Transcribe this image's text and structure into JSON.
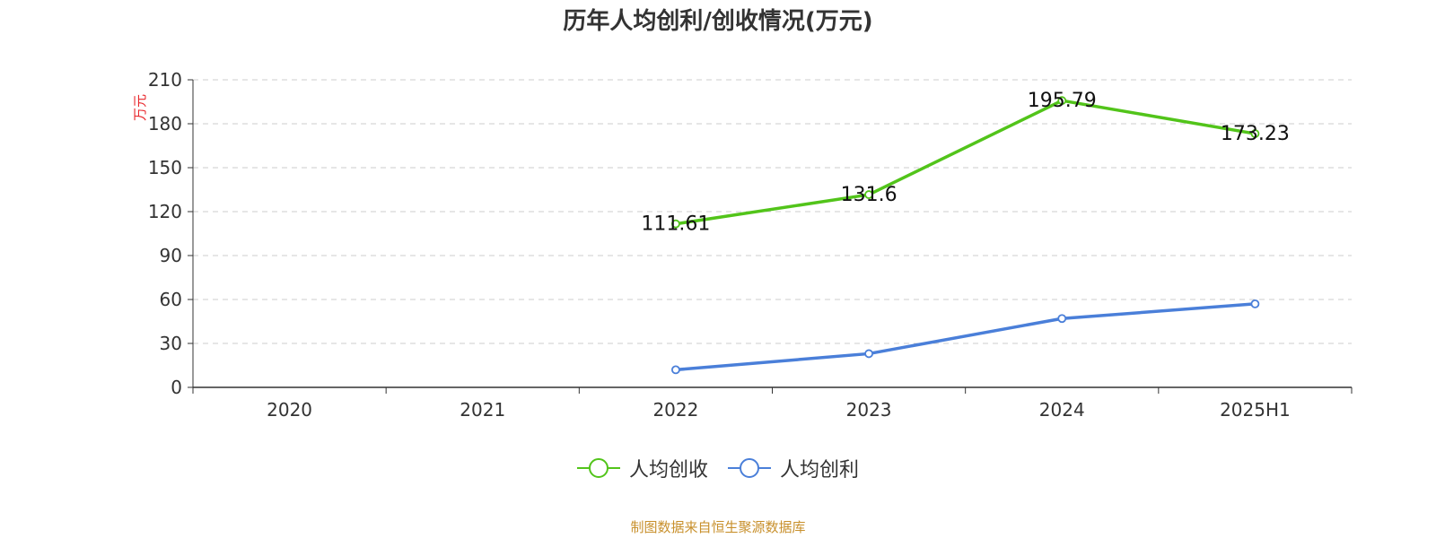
{
  "colors": {
    "series_revenue": "#52c41a",
    "series_profit": "#4a7fd9",
    "ylabel": "#e8262b",
    "grid": "#cccccc",
    "axis": "#333333",
    "source": "#c8902c"
  },
  "chart_data": {
    "type": "line",
    "title": "历年人均创利/创收情况(万元)",
    "xlabel": "",
    "ylabel": "万元",
    "categories": [
      "2020",
      "2021",
      "2022",
      "2023",
      "2024",
      "2025H1"
    ],
    "ylim": [
      0,
      210
    ],
    "yticks": [
      0,
      30,
      60,
      90,
      120,
      150,
      180,
      210
    ],
    "grid": "horizontal-dashed",
    "legend_position": "bottom",
    "series": [
      {
        "name": "人均创收",
        "color": "#52c41a",
        "values": [
          null,
          null,
          111.61,
          131.6,
          195.79,
          173.23
        ],
        "labels": [
          "",
          "",
          "111.61",
          "131.6",
          "195.79",
          "173.23"
        ],
        "show_labels": true
      },
      {
        "name": "人均创利",
        "color": "#4a7fd9",
        "values": [
          null,
          null,
          12,
          23,
          47,
          57
        ],
        "labels": [
          "",
          "",
          "",
          "",
          "",
          ""
        ],
        "show_labels": false
      }
    ]
  },
  "footer": {
    "source": "制图数据来自恒生聚源数据库"
  }
}
